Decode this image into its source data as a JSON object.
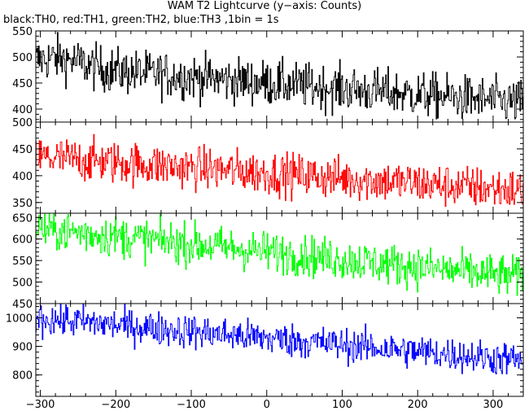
{
  "title": "WAM T2 Lightcurve (y−axis: Counts)",
  "subtitle": "black:TH0, red:TH1, green:TH2, blue:TH3 ,1bin = 1s",
  "chart_data": {
    "type": "line",
    "xlim": [
      -306,
      340
    ],
    "x_ticks": [
      "−300",
      "−200",
      "−100",
      "0",
      "100",
      "200",
      "300"
    ],
    "x_tick_values": [
      -300,
      -200,
      -100,
      0,
      100,
      200,
      300
    ],
    "bin_seconds": 1,
    "grid": false,
    "panels": [
      {
        "channel": "TH0",
        "color": "#000000",
        "ylim": [
          375,
          550
        ],
        "y_ticks": [
          "400",
          "450",
          "500",
          "550"
        ],
        "y_tick_values": [
          400,
          450,
          500,
          550
        ],
        "trend_start": 485,
        "trend_end": 412,
        "noise": 22
      },
      {
        "channel": "TH1",
        "color": "#ff0000",
        "ylim": [
          330,
          500
        ],
        "y_ticks": [
          "350",
          "400",
          "450",
          "500"
        ],
        "y_tick_values": [
          350,
          400,
          450,
          500
        ],
        "trend_start": 435,
        "trend_end": 372,
        "noise": 20
      },
      {
        "channel": "TH2",
        "color": "#00ff00",
        "ylim": [
          450,
          660
        ],
        "y_ticks": [
          "450",
          "500",
          "550",
          "600",
          "650"
        ],
        "y_tick_values": [
          450,
          500,
          550,
          600,
          650
        ],
        "trend_start": 625,
        "trend_end": 510,
        "noise": 24
      },
      {
        "channel": "TH3",
        "color": "#0000ff",
        "ylim": [
          725,
          1050
        ],
        "y_ticks": [
          "800",
          "900",
          "1000"
        ],
        "y_tick_values": [
          800,
          900,
          1000
        ],
        "trend_start": 1000,
        "trend_end": 850,
        "noise": 30
      }
    ]
  }
}
